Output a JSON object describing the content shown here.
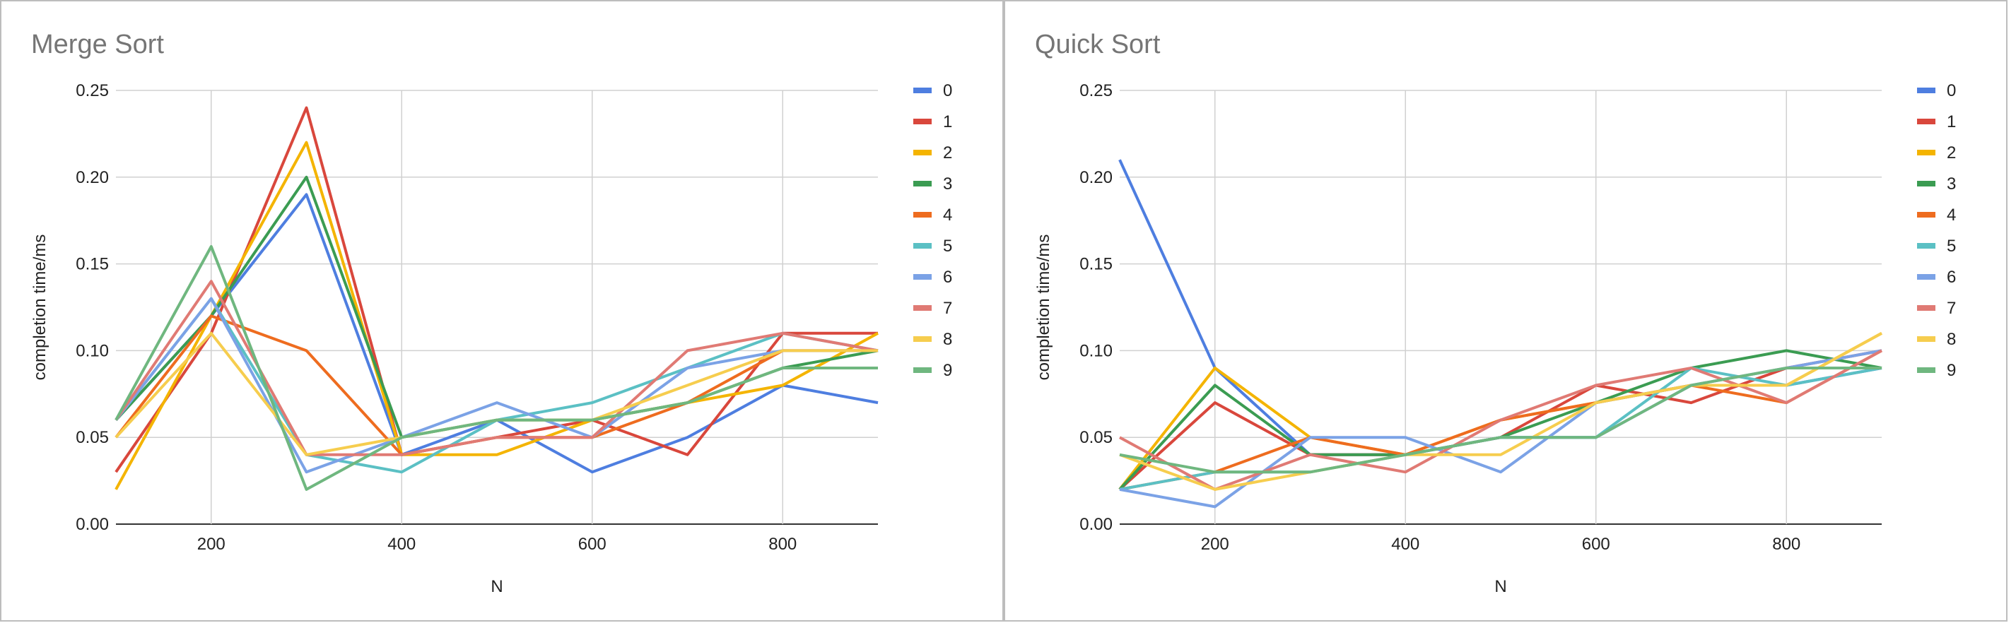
{
  "chart_data": [
    {
      "type": "line",
      "title": "Merge Sort",
      "xlabel": "N",
      "ylabel": "completion time/ms",
      "xlim": [
        100,
        900
      ],
      "ylim": [
        0,
        0.25
      ],
      "xticks": [
        200,
        400,
        600,
        800
      ],
      "yticks": [
        "0.00",
        "0.05",
        "0.10",
        "0.15",
        "0.20",
        "0.25"
      ],
      "grid": true,
      "legend_position": "right",
      "x": [
        100,
        200,
        300,
        400,
        500,
        600,
        700,
        800,
        900
      ],
      "series": [
        {
          "name": "0",
          "color": "#4e7ee0",
          "values": [
            0.06,
            0.12,
            0.19,
            0.04,
            0.06,
            0.03,
            0.05,
            0.08,
            0.07
          ]
        },
        {
          "name": "1",
          "color": "#d9473c",
          "values": [
            0.03,
            0.11,
            0.24,
            0.04,
            0.05,
            0.06,
            0.04,
            0.11,
            0.11
          ]
        },
        {
          "name": "2",
          "color": "#f4b400",
          "values": [
            0.02,
            0.12,
            0.22,
            0.04,
            0.04,
            0.06,
            0.07,
            0.08,
            0.11
          ]
        },
        {
          "name": "3",
          "color": "#3b9c52",
          "values": [
            0.06,
            0.12,
            0.2,
            0.05,
            0.06,
            0.06,
            0.07,
            0.09,
            0.1
          ]
        },
        {
          "name": "4",
          "color": "#ee6c1f",
          "values": [
            0.05,
            0.12,
            0.1,
            0.04,
            0.05,
            0.05,
            0.07,
            0.1,
            0.1
          ]
        },
        {
          "name": "5",
          "color": "#5bc0c4",
          "values": [
            0.06,
            0.13,
            0.04,
            0.03,
            0.06,
            0.07,
            0.09,
            0.11,
            0.1
          ]
        },
        {
          "name": "6",
          "color": "#7ba2e6",
          "values": [
            0.06,
            0.13,
            0.03,
            0.05,
            0.07,
            0.05,
            0.09,
            0.1,
            0.1
          ]
        },
        {
          "name": "7",
          "color": "#e07a74",
          "values": [
            0.06,
            0.14,
            0.04,
            0.04,
            0.05,
            0.05,
            0.1,
            0.11,
            0.1
          ]
        },
        {
          "name": "8",
          "color": "#f6cd4e",
          "values": [
            0.05,
            0.11,
            0.04,
            0.05,
            0.06,
            0.06,
            0.08,
            0.1,
            0.1
          ]
        },
        {
          "name": "9",
          "color": "#6fb77f",
          "values": [
            0.06,
            0.16,
            0.02,
            0.05,
            0.06,
            0.06,
            0.07,
            0.09,
            0.09
          ]
        }
      ]
    },
    {
      "type": "line",
      "title": "Quick Sort",
      "xlabel": "N",
      "ylabel": "completion time/ms",
      "xlim": [
        100,
        900
      ],
      "ylim": [
        0,
        0.25
      ],
      "xticks": [
        200,
        400,
        600,
        800
      ],
      "yticks": [
        "0.00",
        "0.05",
        "0.10",
        "0.15",
        "0.20",
        "0.25"
      ],
      "grid": true,
      "legend_position": "right",
      "x": [
        100,
        200,
        300,
        400,
        500,
        600,
        700,
        800,
        900
      ],
      "series": [
        {
          "name": "0",
          "color": "#4e7ee0",
          "values": [
            0.21,
            0.09,
            0.04,
            0.04,
            0.05,
            0.05,
            0.08,
            0.08,
            0.09
          ]
        },
        {
          "name": "1",
          "color": "#d9473c",
          "values": [
            0.02,
            0.07,
            0.04,
            0.04,
            0.05,
            0.08,
            0.07,
            0.09,
            0.1
          ]
        },
        {
          "name": "2",
          "color": "#f4b400",
          "values": [
            0.02,
            0.09,
            0.05,
            0.04,
            0.06,
            0.07,
            0.08,
            0.08,
            0.11
          ]
        },
        {
          "name": "3",
          "color": "#3b9c52",
          "values": [
            0.02,
            0.08,
            0.04,
            0.04,
            0.05,
            0.07,
            0.09,
            0.1,
            0.09
          ]
        },
        {
          "name": "4",
          "color": "#ee6c1f",
          "values": [
            0.02,
            0.03,
            0.05,
            0.04,
            0.06,
            0.07,
            0.08,
            0.07,
            0.1
          ]
        },
        {
          "name": "5",
          "color": "#5bc0c4",
          "values": [
            0.02,
            0.03,
            0.03,
            0.04,
            0.05,
            0.05,
            0.09,
            0.08,
            0.09
          ]
        },
        {
          "name": "6",
          "color": "#7ba2e6",
          "values": [
            0.02,
            0.01,
            0.05,
            0.05,
            0.03,
            0.07,
            0.08,
            0.09,
            0.1
          ]
        },
        {
          "name": "7",
          "color": "#e07a74",
          "values": [
            0.05,
            0.02,
            0.04,
            0.03,
            0.06,
            0.08,
            0.09,
            0.07,
            0.1
          ]
        },
        {
          "name": "8",
          "color": "#f6cd4e",
          "values": [
            0.04,
            0.02,
            0.03,
            0.04,
            0.04,
            0.07,
            0.08,
            0.08,
            0.11
          ]
        },
        {
          "name": "9",
          "color": "#6fb77f",
          "values": [
            0.04,
            0.03,
            0.03,
            0.04,
            0.05,
            0.05,
            0.08,
            0.09,
            0.09
          ]
        }
      ]
    }
  ]
}
